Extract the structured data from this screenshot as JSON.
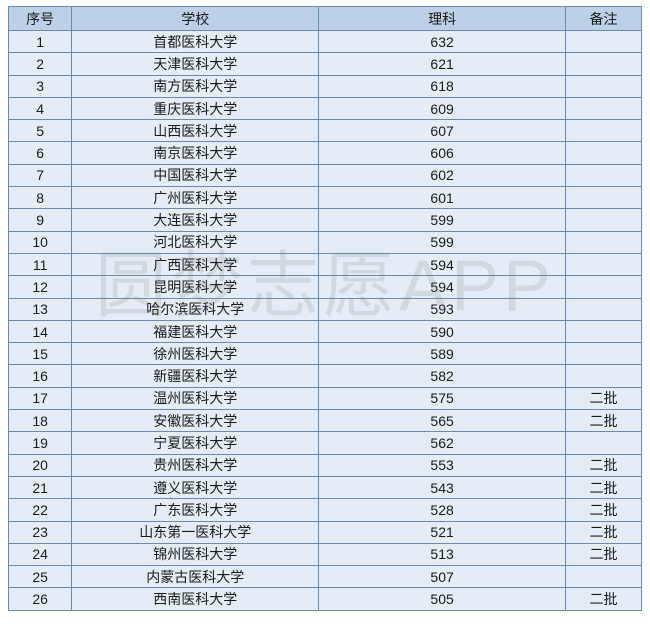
{
  "watermark_text": "圆梦志愿APP",
  "table": {
    "header_bg": "#bcd1e8",
    "cell_bg": "#e4edf6",
    "border_color": "#6a8bb0",
    "text_color": "#1a1a1a",
    "font_size": 14,
    "columns": [
      {
        "key": "idx",
        "label": "序号",
        "width_pct": 10,
        "align": "center"
      },
      {
        "key": "school",
        "label": "学校",
        "width_pct": 39,
        "align": "center"
      },
      {
        "key": "score",
        "label": "理科",
        "width_pct": 39,
        "align": "center"
      },
      {
        "key": "note",
        "label": "备注",
        "width_pct": 12,
        "align": "center"
      }
    ],
    "rows": [
      {
        "idx": "1",
        "school": "首都医科大学",
        "score": "632",
        "note": ""
      },
      {
        "idx": "2",
        "school": "天津医科大学",
        "score": "621",
        "note": ""
      },
      {
        "idx": "3",
        "school": "南方医科大学",
        "score": "618",
        "note": ""
      },
      {
        "idx": "4",
        "school": "重庆医科大学",
        "score": "609",
        "note": ""
      },
      {
        "idx": "5",
        "school": "山西医科大学",
        "score": "607",
        "note": ""
      },
      {
        "idx": "6",
        "school": "南京医科大学",
        "score": "606",
        "note": ""
      },
      {
        "idx": "7",
        "school": "中国医科大学",
        "score": "602",
        "note": ""
      },
      {
        "idx": "8",
        "school": "广州医科大学",
        "score": "601",
        "note": ""
      },
      {
        "idx": "9",
        "school": "大连医科大学",
        "score": "599",
        "note": ""
      },
      {
        "idx": "10",
        "school": "河北医科大学",
        "score": "599",
        "note": ""
      },
      {
        "idx": "11",
        "school": "广西医科大学",
        "score": "594",
        "note": ""
      },
      {
        "idx": "12",
        "school": "昆明医科大学",
        "score": "594",
        "note": ""
      },
      {
        "idx": "13",
        "school": "哈尔滨医科大学",
        "score": "593",
        "note": ""
      },
      {
        "idx": "14",
        "school": "福建医科大学",
        "score": "590",
        "note": ""
      },
      {
        "idx": "15",
        "school": "徐州医科大学",
        "score": "589",
        "note": ""
      },
      {
        "idx": "16",
        "school": "新疆医科大学",
        "score": "582",
        "note": ""
      },
      {
        "idx": "17",
        "school": "温州医科大学",
        "score": "575",
        "note": "二批"
      },
      {
        "idx": "18",
        "school": "安徽医科大学",
        "score": "565",
        "note": "二批"
      },
      {
        "idx": "19",
        "school": "宁夏医科大学",
        "score": "562",
        "note": ""
      },
      {
        "idx": "20",
        "school": "贵州医科大学",
        "score": "553",
        "note": "二批"
      },
      {
        "idx": "21",
        "school": "遵义医科大学",
        "score": "543",
        "note": "二批"
      },
      {
        "idx": "22",
        "school": "广东医科大学",
        "score": "528",
        "note": "二批"
      },
      {
        "idx": "23",
        "school": "山东第一医科大学",
        "score": "521",
        "note": "二批"
      },
      {
        "idx": "24",
        "school": "锦州医科大学",
        "score": "513",
        "note": "二批"
      },
      {
        "idx": "25",
        "school": "内蒙古医科大学",
        "score": "507",
        "note": ""
      },
      {
        "idx": "26",
        "school": "西南医科大学",
        "score": "505",
        "note": "二批"
      }
    ]
  }
}
